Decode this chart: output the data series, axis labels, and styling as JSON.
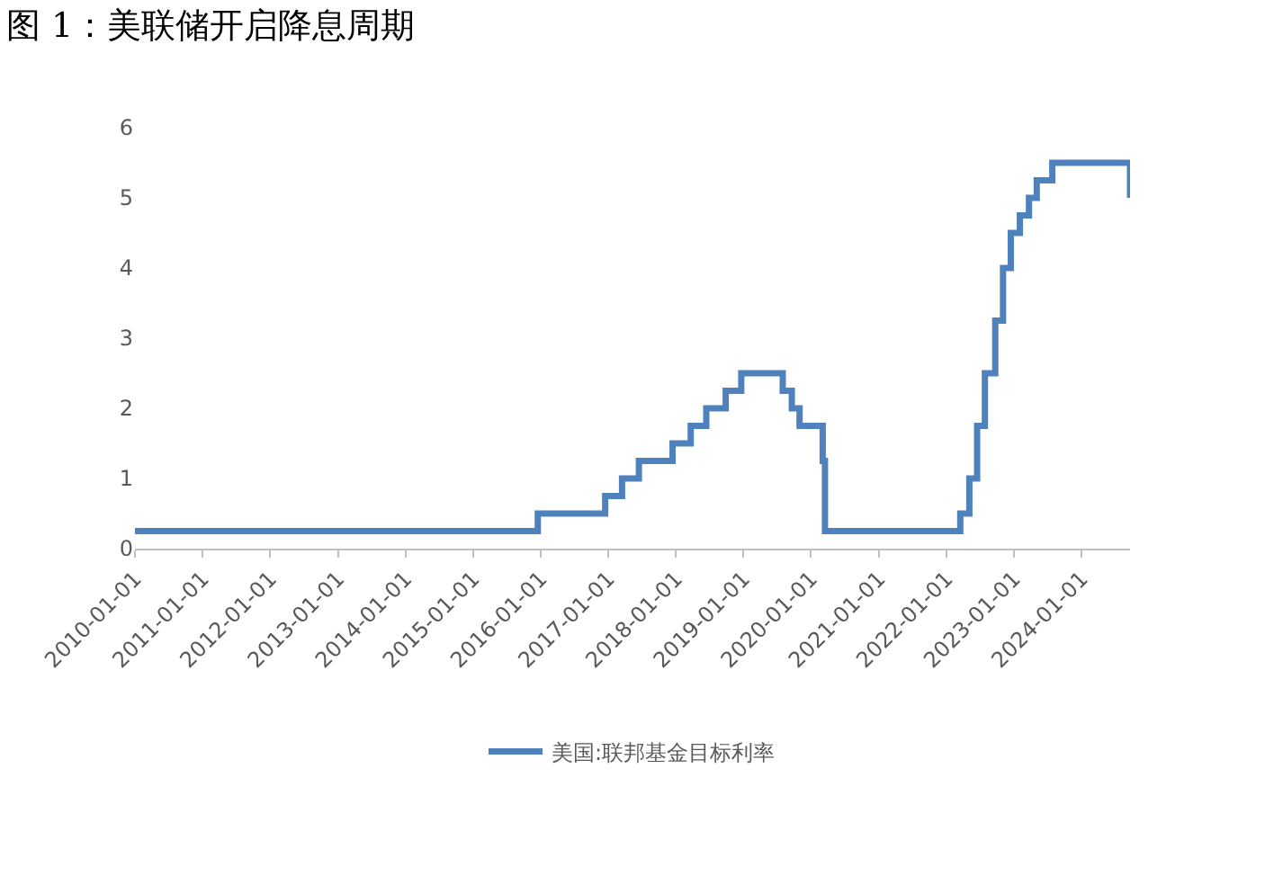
{
  "chart_data": {
    "type": "step",
    "title": "图 1：美联储开启降息周期",
    "x": [
      "2010-01-01",
      "2015-12-17",
      "2016-12-15",
      "2017-03-16",
      "2017-06-15",
      "2017-12-14",
      "2018-03-22",
      "2018-06-14",
      "2018-09-27",
      "2018-12-20",
      "2019-08-01",
      "2019-09-19",
      "2019-10-31",
      "2020-03-04",
      "2020-03-16",
      "2022-03-17",
      "2022-05-05",
      "2022-06-16",
      "2022-07-28",
      "2022-09-22",
      "2022-11-03",
      "2022-12-15",
      "2023-02-02",
      "2023-03-23",
      "2023-05-04",
      "2023-07-27",
      "2024-09-19"
    ],
    "series": [
      {
        "name": "美国:联邦基金目标利率",
        "color": "#4f81bd",
        "values": [
          0.25,
          0.5,
          0.75,
          1.0,
          1.25,
          1.5,
          1.75,
          2.0,
          2.25,
          2.5,
          2.25,
          2.0,
          1.75,
          1.25,
          0.25,
          0.5,
          1.0,
          1.75,
          2.5,
          3.25,
          4.0,
          4.5,
          4.75,
          5.0,
          5.25,
          5.5,
          5.0
        ]
      }
    ],
    "xlim": [
      "2010-01-01",
      "2024-09-19"
    ],
    "xticks": [
      "2010-01-01",
      "2011-01-01",
      "2012-01-01",
      "2013-01-01",
      "2014-01-01",
      "2015-01-01",
      "2016-01-01",
      "2017-01-01",
      "2018-01-01",
      "2019-01-01",
      "2020-01-01",
      "2021-01-01",
      "2022-01-01",
      "2023-01-01",
      "2024-01-01"
    ],
    "ylim": [
      0,
      6
    ],
    "yticks": [
      0,
      1,
      2,
      3,
      4,
      5,
      6
    ],
    "grid": false,
    "legend": "bottom"
  }
}
